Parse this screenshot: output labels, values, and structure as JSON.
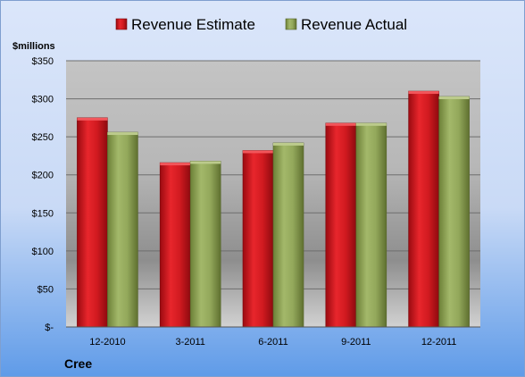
{
  "chart_data": {
    "type": "bar",
    "categories": [
      "12-2010",
      "3-2011",
      "6-2011",
      "9-2011",
      "12-2011"
    ],
    "series": [
      {
        "name": "Revenue Estimate",
        "values": [
          275,
          216,
          232,
          268,
          310
        ],
        "color": "#c8141a"
      },
      {
        "name": "Revenue Actual",
        "values": [
          256,
          218,
          242,
          268,
          303
        ],
        "color": "#8fa356"
      }
    ],
    "title": "Cree",
    "ylabel": "$millions",
    "ylim": [
      0,
      350
    ],
    "yticks": [
      0,
      50,
      100,
      150,
      200,
      250,
      300,
      350
    ],
    "ytick_labels": [
      "$-",
      "$50",
      "$100",
      "$150",
      "$200",
      "$250",
      "$300",
      "$350"
    ],
    "grid": true,
    "legend_position": "top-center"
  }
}
